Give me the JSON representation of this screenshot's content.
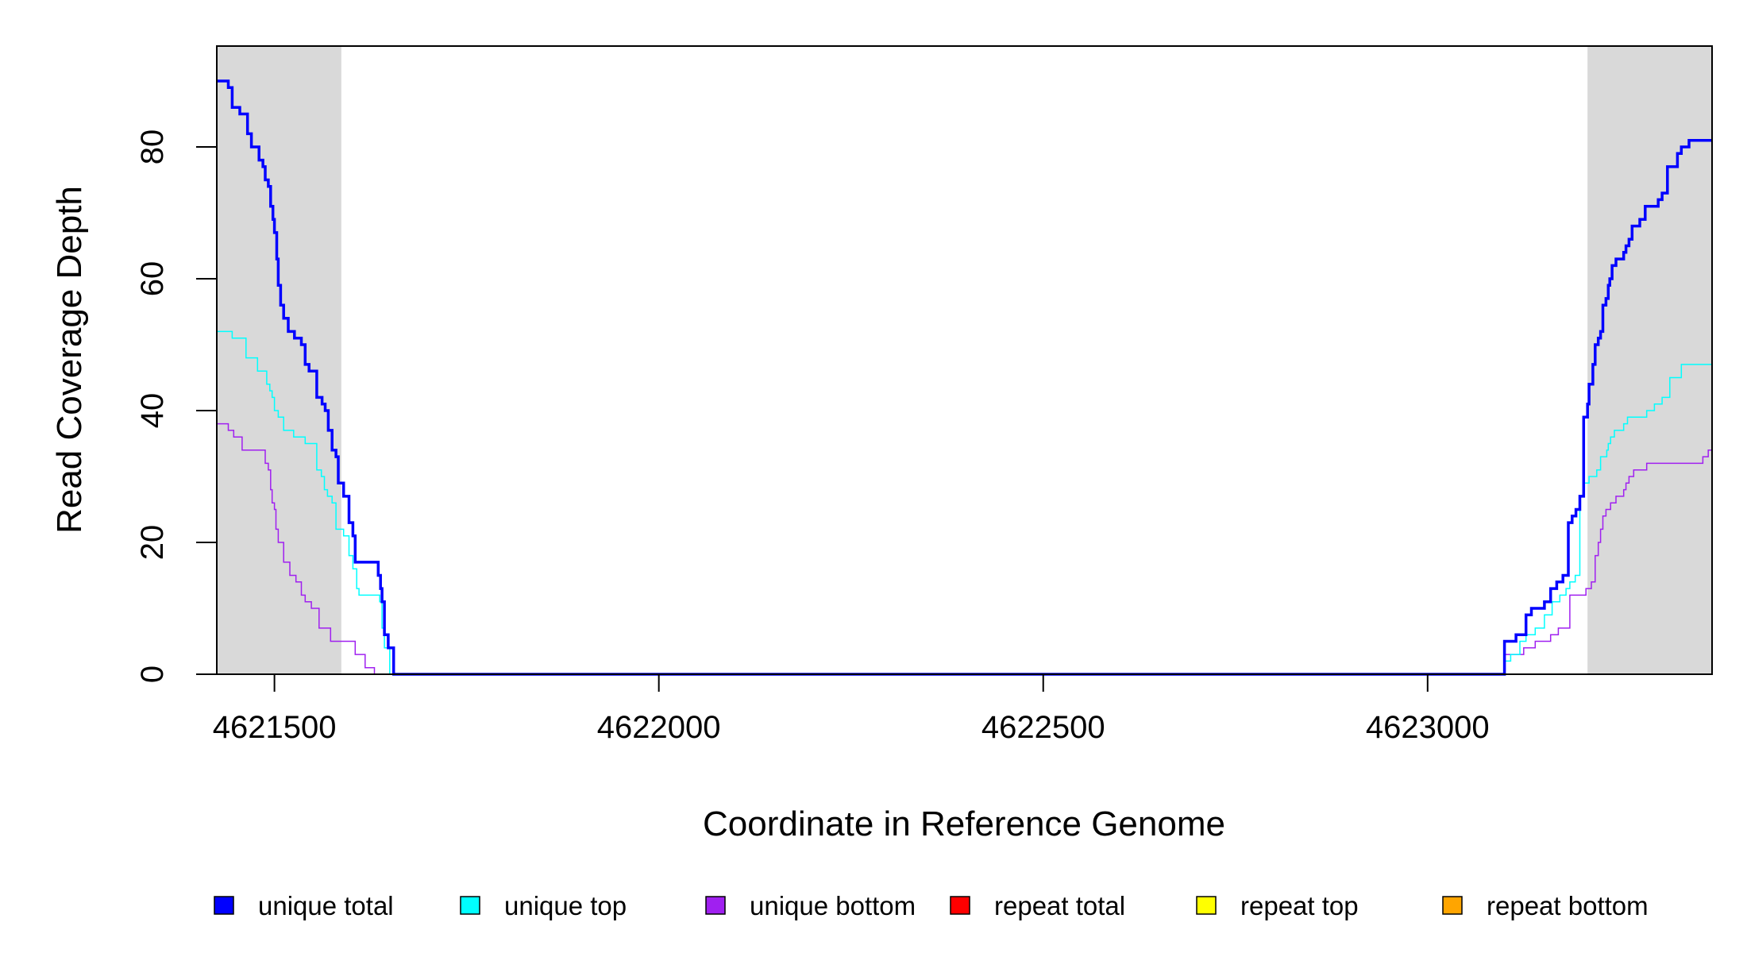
{
  "chart_data": {
    "type": "line",
    "title": "",
    "xlabel": "Coordinate in Reference Genome",
    "ylabel": "Read Coverage Depth",
    "xlim": [
      4621425,
      4623370
    ],
    "ylim": [
      0,
      95
    ],
    "x_ticks": [
      4621500,
      4622000,
      4622500,
      4623000
    ],
    "x_tick_labels": [
      "4621500",
      "4622000",
      "4622500",
      "4623000"
    ],
    "y_ticks": [
      0,
      20,
      40,
      60,
      80
    ],
    "y_tick_labels": [
      "0",
      "20",
      "40",
      "60",
      "80"
    ],
    "grid": false,
    "legend_position": "bottom",
    "shaded_regions": [
      {
        "x0": 4621425,
        "x1": 4621587,
        "color": "#d9d9d9"
      },
      {
        "x0": 4623208,
        "x1": 4623370,
        "color": "#d9d9d9"
      }
    ],
    "series": [
      {
        "name": "unique total",
        "color": "#0000ff",
        "style": "step",
        "width": 3.5,
        "x": [
          4621425,
          4621440,
          4621445,
          4621455,
          4621465,
          4621470,
          4621480,
          4621485,
          4621488,
          4621492,
          4621495,
          4621498,
          4621500,
          4621503,
          4621505,
          4621508,
          4621512,
          4621518,
          4621522,
          4621526,
          4621535,
          4621540,
          4621545,
          4621555,
          4621562,
          4621566,
          4621570,
          4621575,
          4621580,
          4621583,
          4621590,
          4621597,
          4621602,
          4621605,
          4621610,
          4621635,
          4621638,
          4621640,
          4621643,
          4621648,
          4621655,
          4621680,
          4623100,
          4623115,
          4623128,
          4623135,
          4623152,
          4623160,
          4623168,
          4623176,
          4623183,
          4623188,
          4623193,
          4623198,
          4623203,
          4623208,
          4623210,
          4623215,
          4623218,
          4623222,
          4623225,
          4623228,
          4623232,
          4623235,
          4623237,
          4623240,
          4623245,
          4623250,
          4623255,
          4623258,
          4623262,
          4623266,
          4623276,
          4623283,
          4623288,
          4623300,
          4623305,
          4623312,
          4623318,
          4623325,
          4623330,
          4623340,
          4623350,
          4623358,
          4623365,
          4623370
        ],
        "y": [
          90,
          89,
          86,
          85,
          82,
          80,
          78,
          77,
          75,
          74,
          71,
          69,
          67,
          63,
          59,
          56,
          54,
          52,
          52,
          51,
          50,
          47,
          46,
          42,
          41,
          40,
          37,
          34,
          33,
          29,
          27,
          23,
          21,
          17,
          17,
          15,
          13,
          11,
          6,
          4,
          0,
          0,
          5,
          6,
          9,
          10,
          11,
          13,
          14,
          15,
          23,
          24,
          25,
          27,
          39,
          41,
          44,
          47,
          50,
          51,
          52,
          56,
          57,
          59,
          60,
          62,
          63,
          63,
          64,
          65,
          66,
          68,
          69,
          71,
          71,
          72,
          73,
          77,
          77,
          79,
          80,
          81,
          81,
          81,
          81,
          81
        ]
      },
      {
        "name": "unique top",
        "color": "#00ffff",
        "style": "step",
        "width": 1.5,
        "x": [
          4621425,
          4621445,
          4621463,
          4621478,
          4621490,
          4621494,
          4621497,
          4621500,
          4621505,
          4621512,
          4621525,
          4621540,
          4621555,
          4621561,
          4621565,
          4621569,
          4621575,
          4621580,
          4621590,
          4621597,
          4621602,
          4621607,
          4621610,
          4621637,
          4621640,
          4621643,
          4621650,
          4621680,
          4623100,
          4623108,
          4623120,
          4623128,
          4623140,
          4623152,
          4623162,
          4623172,
          4623180,
          4623185,
          4623192,
          4623198,
          4623203,
          4623207,
          4623210,
          4623220,
          4623225,
          4623233,
          4623235,
          4623238,
          4623243,
          4623255,
          4623260,
          4623270,
          4623275,
          4623285,
          4623295,
          4623305,
          4623315,
          4623330,
          4623345,
          4623360,
          4623370
        ],
        "y": [
          52,
          51,
          48,
          46,
          44,
          43,
          42,
          40,
          39,
          37,
          36,
          35,
          31,
          30,
          28,
          27,
          26,
          22,
          21,
          18,
          16,
          13,
          12,
          11,
          7,
          4,
          0,
          0,
          2,
          3,
          5,
          6,
          7,
          9,
          11,
          12,
          13,
          14,
          15,
          27,
          29,
          29,
          30,
          31,
          33,
          34,
          35,
          36,
          37,
          38,
          39,
          39,
          39,
          40,
          41,
          42,
          45,
          47,
          47,
          47,
          47
        ]
      },
      {
        "name": "unique bottom",
        "color": "#a020f0",
        "style": "step",
        "width": 1.5,
        "x": [
          4621425,
          4621440,
          4621447,
          4621458,
          4621485,
          4621488,
          4621492,
          4621495,
          4621497,
          4621500,
          4621502,
          4621505,
          4621512,
          4621520,
          4621528,
          4621535,
          4621540,
          4621548,
          4621558,
          4621573,
          4621605,
          4621618,
          4621630,
          4621641,
          4621655,
          4621680,
          4623100,
          4623125,
          4623140,
          4623160,
          4623170,
          4623185,
          4623206,
          4623213,
          4623218,
          4623222,
          4623225,
          4623228,
          4623232,
          4623238,
          4623245,
          4623252,
          4623255,
          4623258,
          4623262,
          4623268,
          4623285,
          4623290,
          4623350,
          4623358,
          4623365,
          4623370
        ],
        "y": [
          38,
          37,
          36,
          34,
          34,
          32,
          31,
          28,
          26,
          25,
          22,
          20,
          17,
          15,
          14,
          12,
          11,
          10,
          7,
          5,
          3,
          1,
          0,
          0,
          0,
          0,
          3,
          4,
          5,
          6,
          7,
          12,
          13,
          14,
          18,
          20,
          22,
          24,
          25,
          26,
          27,
          27,
          28,
          29,
          30,
          31,
          32,
          32,
          32,
          33,
          34,
          34
        ]
      },
      {
        "name": "repeat total",
        "color": "#ff0000",
        "style": "step",
        "width": 1.5,
        "x": [
          4621425,
          4623370
        ],
        "y": [
          0,
          0
        ]
      },
      {
        "name": "repeat top",
        "color": "#ffff00",
        "style": "step",
        "width": 1.5,
        "x": [
          4621425,
          4623370
        ],
        "y": [
          0,
          0
        ]
      },
      {
        "name": "repeat bottom",
        "color": "#ffa500",
        "style": "step",
        "width": 2,
        "x": [
          4621425,
          4623370
        ],
        "y": [
          0,
          0
        ]
      }
    ]
  }
}
